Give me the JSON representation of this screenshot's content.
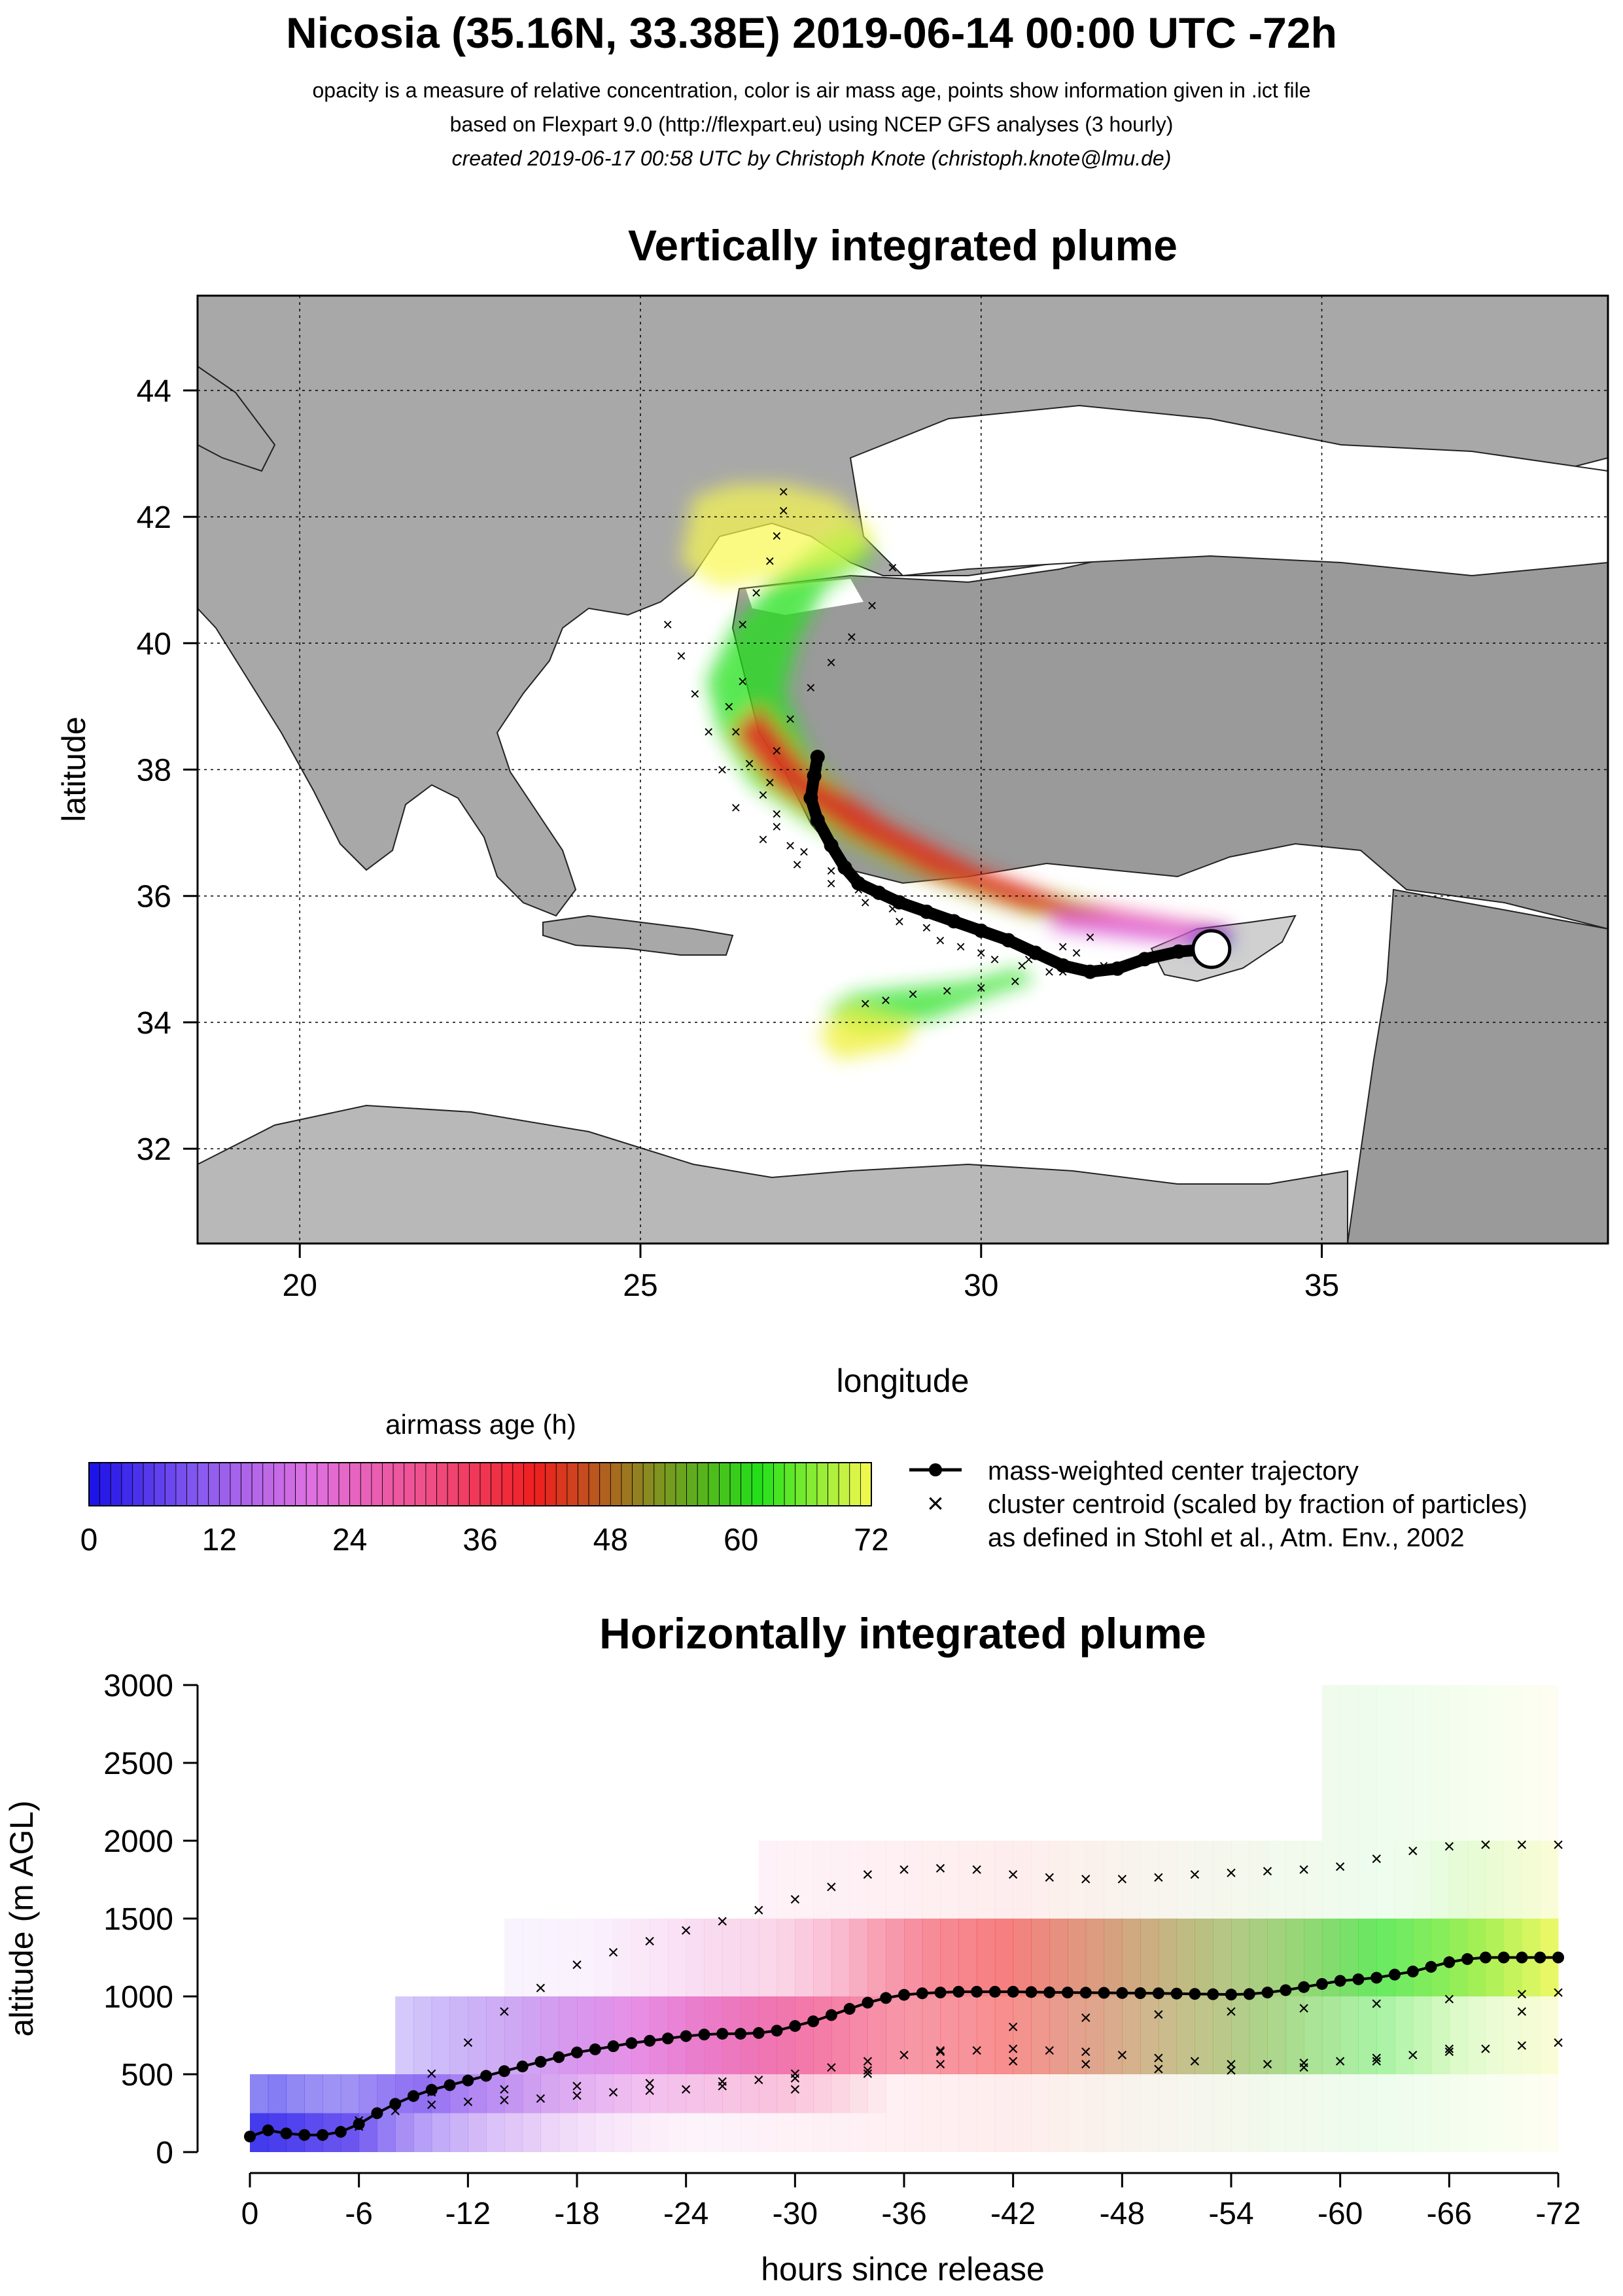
{
  "header": {
    "title": "Nicosia (35.16N, 33.38E) 2019-06-14 00:00 UTC -72h",
    "line1": "opacity is a measure of relative concentration, color is air mass age, points show information given in .ict file",
    "line2": "based on Flexpart 9.0 (http://flexpart.eu) using NCEP GFS analyses (3 hourly)",
    "line3": "created 2019-06-17 00:58 UTC by Christoph Knote (christoph.knote@lmu.de)"
  },
  "colors": {
    "age_ramp": [
      "#1a10e8",
      "#8a5cf0",
      "#e070e0",
      "#f0508c",
      "#f01e1e",
      "#8a8a20",
      "#22e01a",
      "#f8f850"
    ],
    "land": "#a8a8a8",
    "sea": "#ffffff",
    "trajectory": "#000000"
  },
  "chart_data": [
    {
      "type": "map",
      "title": "Vertically integrated plume",
      "xlabel": "longitude",
      "ylabel": "latitude",
      "xlim": [
        18.5,
        39.2
      ],
      "ylim": [
        30.5,
        45.5
      ],
      "xticks": [
        20,
        25,
        30,
        35
      ],
      "yticks": [
        32,
        34,
        36,
        38,
        40,
        42,
        44
      ],
      "grid": true,
      "release_point": {
        "lon": 33.38,
        "lat": 35.16
      },
      "center_trajectory": {
        "lon": [
          33.38,
          32.9,
          32.4,
          32.0,
          31.6,
          31.2,
          30.8,
          30.4,
          30.0,
          29.6,
          29.2,
          28.8,
          28.5,
          28.2,
          28.0,
          27.8,
          27.6,
          27.5,
          27.55,
          27.6
        ],
        "lat": [
          35.16,
          35.12,
          35.0,
          34.85,
          34.8,
          34.9,
          35.1,
          35.3,
          35.45,
          35.6,
          35.75,
          35.9,
          36.05,
          36.2,
          36.45,
          36.8,
          37.2,
          37.55,
          37.9,
          38.2
        ]
      },
      "cluster_centroids": [
        {
          "lon": [
            33.0,
            32.4,
            31.8,
            31.2,
            30.6,
            30.0,
            29.4,
            28.8,
            28.3,
            27.8,
            27.3,
            26.8,
            26.4,
            26.2,
            26.0,
            25.8,
            25.6,
            25.4
          ],
          "lat": [
            35.1,
            35.0,
            34.9,
            34.8,
            34.9,
            35.1,
            35.3,
            35.6,
            35.9,
            36.2,
            36.5,
            36.9,
            37.4,
            38.0,
            38.6,
            39.2,
            39.8,
            40.3
          ]
        },
        {
          "lon": [
            31.4,
            31.0,
            30.5,
            30.0,
            29.5,
            29.0,
            28.6,
            28.3
          ],
          "lat": [
            35.1,
            34.8,
            34.65,
            34.55,
            34.5,
            34.45,
            34.35,
            34.3
          ]
        },
        {
          "lon": [
            31.6,
            31.2,
            30.7,
            30.2,
            29.7,
            29.2,
            28.7,
            28.2,
            27.8,
            27.4,
            27.0,
            26.8,
            26.6,
            26.4,
            26.3,
            26.5
          ],
          "lat": [
            35.35,
            35.2,
            35.0,
            35.0,
            35.2,
            35.5,
            35.8,
            36.1,
            36.4,
            36.7,
            37.1,
            37.6,
            38.1,
            38.6,
            39.0,
            39.4
          ]
        },
        {
          "lon": [
            27.2,
            27.0,
            26.9,
            27.0,
            27.2,
            27.5,
            27.8,
            28.1,
            28.4,
            28.7
          ],
          "lat": [
            36.8,
            37.3,
            37.8,
            38.3,
            38.8,
            39.3,
            39.7,
            40.1,
            40.6,
            41.2
          ]
        },
        {
          "lon": [
            26.5,
            26.7,
            26.9,
            27.0,
            27.1,
            27.1
          ],
          "lat": [
            40.3,
            40.8,
            41.3,
            41.7,
            42.1,
            42.4
          ]
        }
      ]
    },
    {
      "type": "colorbar",
      "title": "airmass age (h)",
      "range": [
        0,
        72
      ],
      "ticks": [
        0,
        12,
        24,
        36,
        48,
        60,
        72
      ]
    },
    {
      "type": "legend",
      "entries": [
        {
          "symbol": "line-dot",
          "label": "mass-weighted center trajectory"
        },
        {
          "symbol": "x",
          "label": "cluster centroid (scaled by fraction of particles)"
        },
        {
          "symbol": "none",
          "label": "as defined in Stohl et al., Atm. Env., 2002"
        }
      ]
    },
    {
      "type": "line",
      "title": "Horizontally integrated plume",
      "xlabel": "hours since release",
      "ylabel": "altitude (m AGL)",
      "xlim": [
        0,
        -72
      ],
      "ylim": [
        0,
        3000
      ],
      "xticks": [
        0,
        -6,
        -12,
        -18,
        -24,
        -30,
        -36,
        -42,
        -48,
        -54,
        -60,
        -66,
        -72
      ],
      "xtick_labels": [
        "0",
        "-6",
        "-12",
        "-18",
        "-24",
        "-30",
        "-36",
        "-42",
        "-48",
        "-54",
        "-60",
        "-66",
        "-72"
      ],
      "yticks": [
        0,
        500,
        1000,
        1500,
        2000,
        2500,
        3000
      ],
      "center_trajectory": {
        "x": [
          0,
          -1,
          -2,
          -3,
          -4,
          -5,
          -6,
          -7,
          -8,
          -9,
          -10,
          -11,
          -12,
          -13,
          -14,
          -15,
          -16,
          -17,
          -18,
          -19,
          -20,
          -21,
          -22,
          -23,
          -24,
          -25,
          -26,
          -27,
          -28,
          -29,
          -30,
          -31,
          -32,
          -33,
          -34,
          -35,
          -36,
          -37,
          -38,
          -39,
          -40,
          -41,
          -42,
          -43,
          -44,
          -45,
          -46,
          -47,
          -48,
          -49,
          -50,
          -51,
          -52,
          -53,
          -54,
          -55,
          -56,
          -57,
          -58,
          -59,
          -60,
          -61,
          -62,
          -63,
          -64,
          -65,
          -66,
          -67,
          -68,
          -69,
          -70,
          -71,
          -72
        ],
        "y": [
          100,
          140,
          120,
          110,
          110,
          130,
          180,
          250,
          310,
          360,
          400,
          430,
          460,
          490,
          520,
          550,
          580,
          610,
          640,
          660,
          680,
          700,
          715,
          730,
          745,
          755,
          760,
          760,
          765,
          780,
          810,
          840,
          880,
          920,
          960,
          990,
          1010,
          1020,
          1025,
          1030,
          1030,
          1030,
          1030,
          1028,
          1026,
          1025,
          1024,
          1023,
          1022,
          1021,
          1020,
          1018,
          1016,
          1014,
          1012,
          1015,
          1025,
          1040,
          1060,
          1080,
          1100,
          1110,
          1120,
          1140,
          1160,
          1190,
          1220,
          1240,
          1250,
          1250,
          1250,
          1250,
          1250
        ]
      },
      "cluster_centroids": [
        {
          "x": [
            0,
            -2,
            -4,
            -6,
            -8,
            -10,
            -12,
            -14,
            -16,
            -18,
            -20,
            -22,
            -24,
            -26,
            -28,
            -30,
            -32,
            -34,
            -36,
            -38,
            -40,
            -42,
            -44,
            -46,
            -48,
            -50,
            -52,
            -54,
            -56,
            -58,
            -60,
            -62,
            -64,
            -66,
            -68,
            -70,
            -72
          ],
          "y": [
            100,
            120,
            110,
            160,
            300,
            500,
            700,
            900,
            1050,
            1200,
            1280,
            1350,
            1420,
            1480,
            1550,
            1620,
            1700,
            1780,
            1810,
            1820,
            1810,
            1780,
            1760,
            1750,
            1750,
            1760,
            1780,
            1790,
            1800,
            1810,
            1830,
            1880,
            1930,
            1960,
            1970,
            1970,
            1970
          ]
        },
        {
          "x": [
            -6,
            -8,
            -10,
            -12,
            -14,
            -16,
            -18,
            -20,
            -22,
            -24,
            -26,
            -28,
            -30,
            -32,
            -34,
            -36,
            -38,
            -40,
            -42,
            -44,
            -46,
            -48,
            -50,
            -52,
            -54,
            -56,
            -58,
            -60,
            -62,
            -64,
            -66,
            -68,
            -70,
            -72
          ],
          "y": [
            200,
            260,
            300,
            320,
            330,
            340,
            360,
            380,
            390,
            400,
            420,
            460,
            500,
            540,
            580,
            620,
            640,
            650,
            660,
            650,
            640,
            620,
            600,
            580,
            560,
            560,
            570,
            580,
            600,
            620,
            640,
            660,
            680,
            700
          ]
        },
        {
          "x": [
            -10,
            -14,
            -18,
            -22,
            -26,
            -30,
            -34,
            -38,
            -42,
            -46,
            -50,
            -54,
            -58,
            -62,
            -66,
            -70
          ],
          "y": [
            380,
            400,
            420,
            440,
            450,
            470,
            520,
            560,
            580,
            560,
            530,
            520,
            540,
            580,
            660,
            900
          ]
        },
        {
          "x": [
            -30,
            -34,
            -38,
            -42,
            -46,
            -50,
            -54,
            -58,
            -62,
            -66,
            -70,
            -72
          ],
          "y": [
            400,
            500,
            650,
            800,
            860,
            880,
            900,
            920,
            950,
            980,
            1010,
            1020
          ]
        }
      ]
    }
  ]
}
